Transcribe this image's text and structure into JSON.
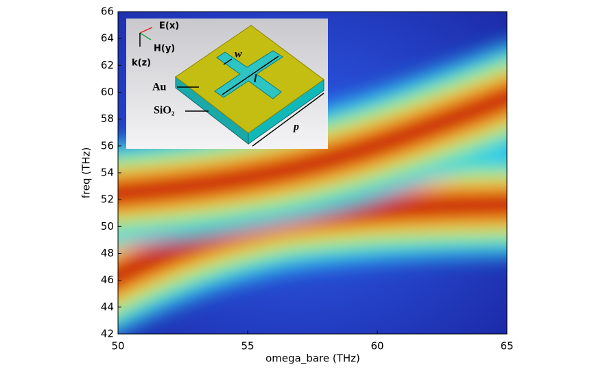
{
  "chart_data": {
    "type": "heatmap",
    "xlabel": "omega_bare (THz)",
    "ylabel": "freq (THz)",
    "xlim": [
      50,
      65
    ],
    "xticks": [
      50,
      55,
      60,
      65
    ],
    "ylim": [
      42,
      66
    ],
    "yticks": [
      42,
      44,
      46,
      48,
      50,
      52,
      54,
      56,
      58,
      60,
      62,
      64,
      66
    ],
    "inset": {
      "labels": [
        "E(x)",
        "H(y)",
        "k(z)",
        "Au",
        "SiO₂",
        "w",
        "l",
        "p"
      ]
    }
  }
}
